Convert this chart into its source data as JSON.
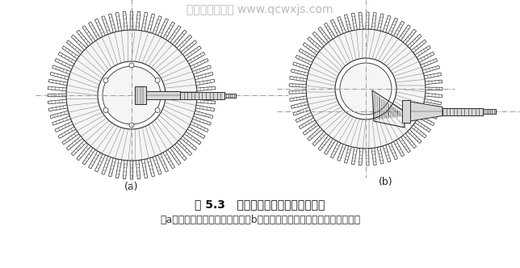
{
  "background_color": "#ffffff",
  "watermark_text": "汽车维修技术网 www.qcwxjs.com",
  "watermark_color": "#bbbbbb",
  "watermark_fontsize": 10,
  "label_a": "(a)",
  "label_b": "(b)",
  "label_fontsize": 9,
  "title_text": "图 5.3   主动齿轮和从动齿轮轴线位置",
  "title_fontsize": 10,
  "caption_text": "（a）主、从动齿轮轴线交叉；（b）主动齿轮轴线相对从动出轮轴线偏移",
  "caption_fontsize": 9,
  "line_color": "#2a2a2a",
  "hatch_color": "#444444",
  "crosshair_color": "#999999",
  "gear_face_color": "#f5f5f5",
  "shaft_color": "#d8d8d8"
}
